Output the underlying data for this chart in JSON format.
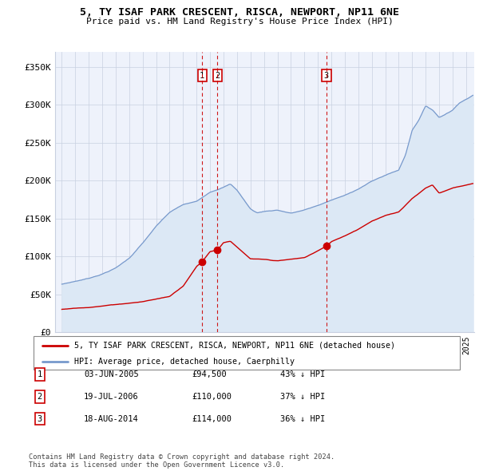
{
  "title": "5, TY ISAF PARK CRESCENT, RISCA, NEWPORT, NP11 6NE",
  "subtitle": "Price paid vs. HM Land Registry's House Price Index (HPI)",
  "ylabel_ticks": [
    "£0",
    "£50K",
    "£100K",
    "£150K",
    "£200K",
    "£250K",
    "£300K",
    "£350K"
  ],
  "ytick_values": [
    0,
    50000,
    100000,
    150000,
    200000,
    250000,
    300000,
    350000
  ],
  "ylim": [
    0,
    370000
  ],
  "xlim_start": 1994.5,
  "xlim_end": 2025.6,
  "sale_color": "#cc0000",
  "hpi_color": "#7799cc",
  "hpi_fill_color": "#dce8f5",
  "vline_color": "#cc0000",
  "box_color": "#cc0000",
  "sales": [
    {
      "label": "1",
      "date_num": 2005.42,
      "price": 94500,
      "pct": "43%",
      "date_str": "03-JUN-2005"
    },
    {
      "label": "2",
      "date_num": 2006.55,
      "price": 110000,
      "pct": "37%",
      "date_str": "19-JUL-2006"
    },
    {
      "label": "3",
      "date_num": 2014.63,
      "price": 114000,
      "pct": "36%",
      "date_str": "18-AUG-2014"
    }
  ],
  "legend_sale_label": "5, TY ISAF PARK CRESCENT, RISCA, NEWPORT, NP11 6NE (detached house)",
  "legend_hpi_label": "HPI: Average price, detached house, Caerphilly",
  "footnote": "Contains HM Land Registry data © Crown copyright and database right 2024.\nThis data is licensed under the Open Government Licence v3.0.",
  "background_color": "#ffffff",
  "plot_bg_color": "#eef2fb",
  "hpi_knots_x": [
    1995,
    1996,
    1997,
    1998,
    1999,
    2000,
    2001,
    2002,
    2003,
    2004,
    2005,
    2006,
    2007,
    2007.5,
    2008,
    2009,
    2009.5,
    2010,
    2011,
    2012,
    2013,
    2014,
    2015,
    2016,
    2017,
    2018,
    2019,
    2020,
    2020.5,
    2021,
    2021.5,
    2022,
    2022.5,
    2023,
    2023.5,
    2024,
    2024.5,
    2025.5
  ],
  "hpi_knots_y": [
    63000,
    67000,
    71000,
    77000,
    85000,
    98000,
    118000,
    140000,
    158000,
    168000,
    172000,
    185000,
    192000,
    196000,
    188000,
    163000,
    158000,
    160000,
    162000,
    158000,
    162000,
    168000,
    175000,
    181000,
    190000,
    200000,
    208000,
    215000,
    235000,
    268000,
    282000,
    300000,
    295000,
    285000,
    290000,
    295000,
    305000,
    315000
  ],
  "sale_knots_x": [
    1995,
    1997,
    1999,
    2001,
    2003,
    2004,
    2005,
    2005.42,
    2006,
    2006.55,
    2007,
    2007.5,
    2008,
    2009,
    2010,
    2011,
    2012,
    2013,
    2014,
    2014.63,
    2015,
    2016,
    2017,
    2018,
    2019,
    2020,
    2021,
    2022,
    2022.5,
    2023,
    2024,
    2025,
    2025.5
  ],
  "sale_knots_y": [
    30000,
    33000,
    37000,
    41000,
    48000,
    62000,
    88000,
    94500,
    108000,
    110000,
    120000,
    122000,
    114000,
    98000,
    97000,
    95000,
    97000,
    99000,
    108000,
    114000,
    120000,
    128000,
    137000,
    148000,
    155000,
    160000,
    178000,
    192000,
    196000,
    185000,
    192000,
    196000,
    198000
  ]
}
